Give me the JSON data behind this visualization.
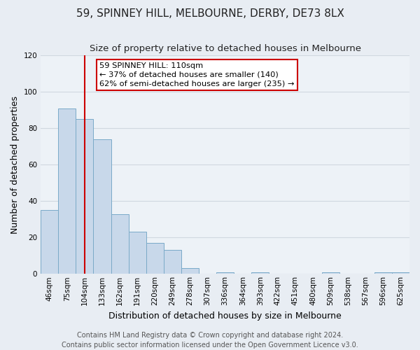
{
  "title": "59, SPINNEY HILL, MELBOURNE, DERBY, DE73 8LX",
  "subtitle": "Size of property relative to detached houses in Melbourne",
  "xlabel": "Distribution of detached houses by size in Melbourne",
  "ylabel": "Number of detached properties",
  "bar_labels": [
    "46sqm",
    "75sqm",
    "104sqm",
    "133sqm",
    "162sqm",
    "191sqm",
    "220sqm",
    "249sqm",
    "278sqm",
    "307sqm",
    "336sqm",
    "364sqm",
    "393sqm",
    "422sqm",
    "451sqm",
    "480sqm",
    "509sqm",
    "538sqm",
    "567sqm",
    "596sqm",
    "625sqm"
  ],
  "bar_values": [
    35,
    91,
    85,
    74,
    33,
    23,
    17,
    13,
    3,
    0,
    1,
    0,
    1,
    0,
    0,
    0,
    1,
    0,
    0,
    1,
    1
  ],
  "bar_color": "#c8d8ea",
  "bar_edge_color": "#7aaac8",
  "ylim": [
    0,
    120
  ],
  "yticks": [
    0,
    20,
    40,
    60,
    80,
    100,
    120
  ],
  "vline_x_index": 2,
  "vline_color": "#cc0000",
  "annotation_text": "59 SPINNEY HILL: 110sqm\n← 37% of detached houses are smaller (140)\n62% of semi-detached houses are larger (235) →",
  "footer_line1": "Contains HM Land Registry data © Crown copyright and database right 2024.",
  "footer_line2": "Contains public sector information licensed under the Open Government Licence v3.0.",
  "background_color": "#e8edf3",
  "plot_background_color": "#edf2f7",
  "grid_color": "#d0d8e0",
  "title_fontsize": 11,
  "subtitle_fontsize": 9.5,
  "axis_label_fontsize": 9,
  "tick_fontsize": 7.5,
  "footer_fontsize": 7
}
